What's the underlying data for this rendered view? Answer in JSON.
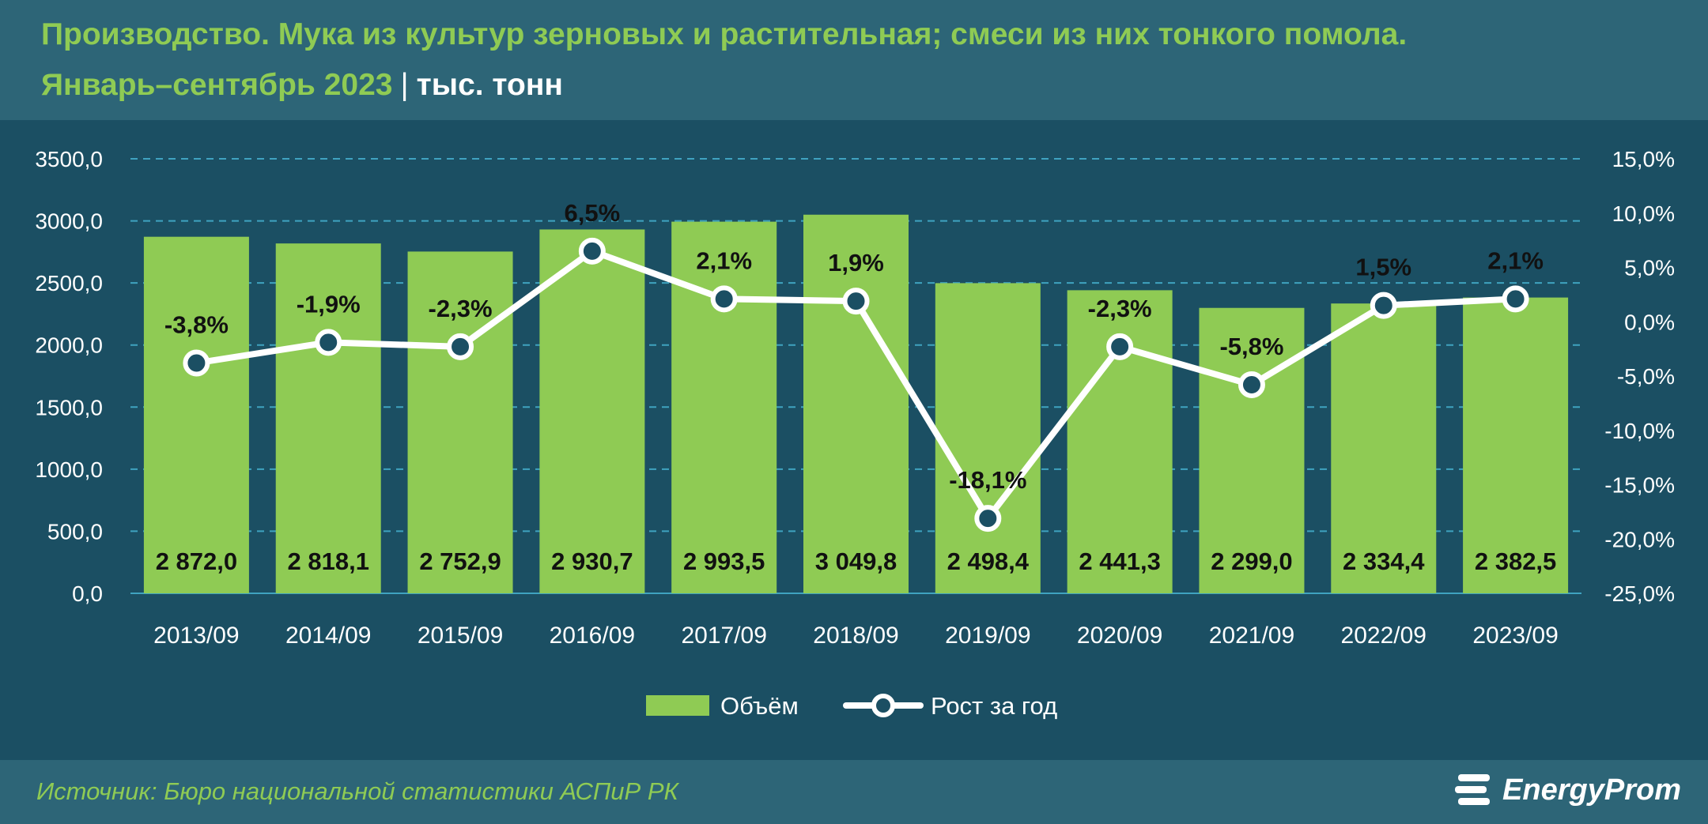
{
  "header": {
    "title": "Производство. Мука из культур зерновых и растительная; смеси из них тонкого помола.",
    "subtitle": "Январь–сентябрь 2023",
    "separator": "|",
    "unit": "тыс. тонн"
  },
  "footer": {
    "source": "Источник: Бюро национальной статистики АСПиР РК",
    "logo_text": "EnergyProm"
  },
  "colors": {
    "background": "#1b4f63",
    "header_band": "#2d6577",
    "bar": "#8fcb54",
    "title": "#8fcb54",
    "line": "#ffffff",
    "gridline": "#3fa3c0"
  },
  "chart_data": {
    "type": "bar",
    "categories": [
      "2013/09",
      "2014/09",
      "2015/09",
      "2016/09",
      "2017/09",
      "2018/09",
      "2019/09",
      "2020/09",
      "2021/09",
      "2022/09",
      "2023/09"
    ],
    "series": [
      {
        "name": "Объём",
        "type": "bar",
        "axis": "left",
        "values": [
          2872.0,
          2818.1,
          2752.9,
          2930.7,
          2993.5,
          3049.8,
          2498.4,
          2441.3,
          2299.0,
          2334.4,
          2382.5
        ],
        "labels": [
          "2 872,0",
          "2 818,1",
          "2 752,9",
          "2 930,7",
          "2 993,5",
          "3 049,8",
          "2 498,4",
          "2 441,3",
          "2 299,0",
          "2 334,4",
          "2 382,5"
        ]
      },
      {
        "name": "Рост за год",
        "type": "line",
        "axis": "right",
        "values": [
          -3.8,
          -1.9,
          -2.3,
          6.5,
          2.1,
          1.9,
          -18.1,
          -2.3,
          -5.8,
          1.5,
          2.1
        ],
        "labels": [
          "-3,8%",
          "-1,9%",
          "-2,3%",
          "6,5%",
          "2,1%",
          "1,9%",
          "-18,1%",
          "-2,3%",
          "-5,8%",
          "1,5%",
          "2,1%"
        ]
      }
    ],
    "y_left": {
      "range": [
        0,
        3500
      ],
      "ticks": [
        0,
        500,
        1000,
        1500,
        2000,
        2500,
        3000,
        3500
      ],
      "tick_labels": [
        "0,0",
        "500,0",
        "1000,0",
        "1500,0",
        "2000,0",
        "2500,0",
        "3000,0",
        "3500,0"
      ]
    },
    "y_right": {
      "range": [
        -25,
        15
      ],
      "ticks": [
        -25,
        -20,
        -15,
        -10,
        -5,
        0,
        5,
        10,
        15
      ],
      "tick_labels": [
        "-25,0%",
        "-20,0%",
        "-15,0%",
        "-10,0%",
        "-5,0%",
        "0,0%",
        "5,0%",
        "10,0%",
        "15,0%"
      ]
    },
    "grid": true,
    "legend": {
      "position": "bottom",
      "items": [
        "Объём",
        "Рост за год"
      ]
    }
  }
}
